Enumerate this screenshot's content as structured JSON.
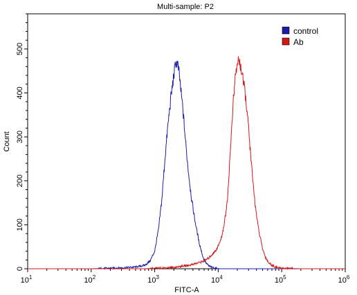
{
  "chart_data": {
    "type": "line",
    "title": "Multi-sample: P2",
    "xlabel": "FITC-A",
    "ylabel": "Count",
    "x_scale": "log10",
    "xlim": [
      10,
      1000000
    ],
    "ylim": [
      0,
      580
    ],
    "x_ticks": [
      {
        "base": "10",
        "exp": "1",
        "value": 10
      },
      {
        "base": "10",
        "exp": "2",
        "value": 100
      },
      {
        "base": "10",
        "exp": "3",
        "value": 1000
      },
      {
        "base": "10",
        "exp": "4",
        "value": 10000
      },
      {
        "base": "10",
        "exp": "5",
        "value": 100000
      },
      {
        "base": "10",
        "exp": "6",
        "value": 1000000
      }
    ],
    "y_ticks": [
      "0",
      "100",
      "200",
      "300",
      "400",
      "500"
    ],
    "y_tick_values": [
      0,
      100,
      200,
      300,
      400,
      500
    ],
    "grid": false,
    "legend_position": "top-right",
    "series": [
      {
        "name": "control",
        "color": "#1a1aa8",
        "x": [
          10,
          100,
          300,
          500,
          700,
          850,
          1000,
          1150,
          1300,
          1450,
          1600,
          1800,
          2000,
          2150,
          2300,
          2450,
          2600,
          2750,
          2900,
          3100,
          3400,
          3800,
          4300,
          5000,
          5800,
          6500,
          7200,
          8000,
          9000,
          10500,
          13000,
          20000,
          100000,
          1000000
        ],
        "y": [
          0,
          0,
          2,
          4,
          8,
          18,
          40,
          90,
          160,
          250,
          320,
          390,
          440,
          470,
          465,
          440,
          400,
          370,
          330,
          280,
          220,
          160,
          110,
          60,
          25,
          12,
          6,
          3,
          1,
          0,
          0,
          0,
          0,
          0
        ]
      },
      {
        "name": "Ab",
        "color": "#d01818",
        "x": [
          10,
          300,
          700,
          1000,
          2000,
          3500,
          5000,
          6000,
          7000,
          8000,
          9000,
          10000,
          11000,
          12000,
          13000,
          14000,
          15000,
          16000,
          17000,
          18000,
          19000,
          20000,
          21000,
          22000,
          23000,
          24000,
          25000,
          26500,
          28000,
          30000,
          32000,
          35000,
          38000,
          42000,
          46000,
          50000,
          56000,
          62000,
          70000,
          80000,
          90000,
          110000,
          200000,
          1000000
        ],
        "y": [
          0,
          0,
          0,
          1,
          3,
          8,
          14,
          18,
          24,
          32,
          40,
          52,
          66,
          90,
          120,
          160,
          230,
          300,
          370,
          410,
          450,
          460,
          480,
          465,
          455,
          440,
          420,
          400,
          370,
          320,
          270,
          200,
          150,
          100,
          70,
          45,
          25,
          14,
          8,
          4,
          2,
          1,
          0,
          0
        ]
      }
    ]
  }
}
